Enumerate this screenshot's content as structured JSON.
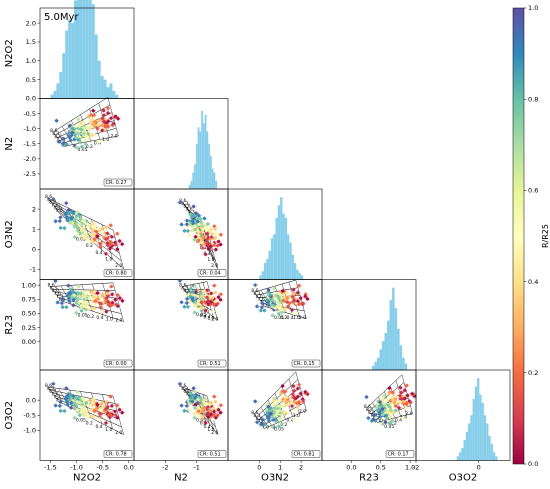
{
  "chart_data": {
    "type": "scatter",
    "time_label": "5.0Myr",
    "variables": [
      "N2O2",
      "N2",
      "O3N2",
      "R23",
      "O3O2"
    ],
    "axis_ranges": {
      "N2O2": [
        -1.7,
        0.1
      ],
      "N2": [
        -3.0,
        0.0
      ],
      "O3N2": [
        -1.5,
        3.0
      ],
      "R23": [
        -0.5,
        1.1
      ],
      "O3O2": [
        -2.0,
        1.0
      ]
    },
    "diag_ylims": {
      "N2O2": [
        0,
        2.4
      ],
      "N2": [
        0,
        1.1
      ],
      "O3N2": [
        0,
        1.1
      ],
      "R23": [
        0,
        1.1
      ],
      "O3O2": [
        0,
        1.1
      ]
    },
    "x_ticks": {
      "N2O2": [
        "-1.5",
        "-1.0",
        "-0.5",
        "0.0"
      ],
      "N2": [
        "-2",
        "-1"
      ],
      "O3N2": [
        "0",
        "1",
        "2"
      ],
      "R23": [
        "0.0",
        "0.5",
        "1.0"
      ],
      "O3O2": [
        "-2",
        "0"
      ]
    },
    "y_ticks": {
      "N2O2": [
        "0.0",
        "0.5",
        "1.0",
        "1.5",
        "2.0"
      ],
      "N2": [
        "-2.5",
        "-2.0",
        "-1.5",
        "-1.0",
        "-0.5"
      ],
      "O3N2": [
        "-1",
        "0",
        "1",
        "2"
      ],
      "R23": [
        "0.00",
        "0.25",
        "0.50",
        "0.75",
        "1.00"
      ],
      "O3O2": [
        "-1.0",
        "-0.5",
        "0.0"
      ]
    },
    "cr_values": [
      {
        "row": 1,
        "col": 0,
        "text": "CR: 0.27"
      },
      {
        "row": 2,
        "col": 0,
        "text": "CR: 0.80"
      },
      {
        "row": 2,
        "col": 1,
        "text": "CR: 0.04"
      },
      {
        "row": 3,
        "col": 0,
        "text": "CR: 0.00"
      },
      {
        "row": 3,
        "col": 1,
        "text": "CR: 0.51"
      },
      {
        "row": 3,
        "col": 2,
        "text": "CR: 0.15"
      },
      {
        "row": 4,
        "col": 0,
        "text": "CR: 0.78"
      },
      {
        "row": 4,
        "col": 1,
        "text": "CR: 0.51"
      },
      {
        "row": 4,
        "col": 2,
        "text": "CR: 0.81"
      },
      {
        "row": 4,
        "col": 3,
        "text": "CR: 0.17"
      }
    ],
    "grid_labels": [
      "8.6",
      "8.3",
      "8.0",
      "7.6",
      "7.3",
      "7.0",
      "0.05",
      "0.2",
      "0.4",
      "1.0",
      "2.0"
    ],
    "histograms": {
      "N2O2": {
        "range": [
          -1.5,
          -0.2
        ],
        "counts": [
          0.05,
          0.1,
          0.2,
          0.35,
          0.6,
          0.9,
          1.05,
          1.0,
          1.3,
          1.5,
          1.65,
          1.35,
          1.6,
          1.9,
          1.25,
          0.85,
          0.5,
          0.3,
          0.25,
          0.15,
          0.2,
          0.1,
          0.05
        ]
      },
      "N2": {
        "range": [
          -1.25,
          -0.35
        ],
        "counts": [
          0.05,
          0.1,
          0.2,
          0.3,
          0.55,
          0.75,
          0.7,
          0.95,
          0.8,
          0.9,
          0.7,
          0.55,
          0.4,
          0.25,
          0.2,
          0.1
        ]
      },
      "O3N2": {
        "range": [
          0.0,
          2.1
        ],
        "counts": [
          0.05,
          0.1,
          0.2,
          0.25,
          0.35,
          0.5,
          0.55,
          0.75,
          0.9,
          1.0,
          0.8,
          0.75,
          0.55,
          0.45,
          0.3,
          0.2,
          0.12,
          0.08,
          0.05
        ]
      },
      "R23": {
        "range": [
          0.35,
          0.95
        ],
        "counts": [
          0.05,
          0.1,
          0.15,
          0.25,
          0.35,
          0.45,
          0.6,
          0.85,
          1.0,
          0.75,
          0.5,
          0.3,
          0.15,
          0.08
        ]
      },
      "O3O2": {
        "range": [
          -0.7,
          0.6
        ],
        "counts": [
          0.05,
          0.1,
          0.15,
          0.25,
          0.35,
          0.45,
          0.55,
          0.75,
          0.9,
          1.0,
          0.8,
          0.7,
          0.55,
          0.45,
          0.3,
          0.2,
          0.1,
          0.05
        ]
      }
    },
    "scatter": {
      "n_points": 120,
      "pairs": {
        "1-0": {
          "center": [
            -0.85,
            -0.9
          ],
          "trend": [
            [
              -1.35,
              -1.35
            ],
            [
              -0.3,
              -0.6
            ]
          ]
        },
        "2-0": {
          "center": [
            -0.8,
            1.0
          ],
          "trend": [
            [
              -1.45,
              2.2
            ],
            [
              -0.2,
              0.0
            ]
          ]
        },
        "2-1": {
          "center": [
            -0.85,
            1.0
          ],
          "trend": [
            [
              -1.3,
              2.0
            ],
            [
              -0.5,
              0.0
            ]
          ]
        },
        "3-0": {
          "center": [
            -0.75,
            0.78
          ],
          "trend": [
            [
              -1.4,
              0.85
            ],
            [
              -0.2,
              0.7
            ]
          ]
        },
        "3-1": {
          "center": [
            -0.85,
            0.8
          ],
          "trend": [
            [
              -1.3,
              0.85
            ],
            [
              -0.5,
              0.72
            ]
          ]
        },
        "3-2": {
          "center": [
            1.0,
            0.78
          ],
          "trend": [
            [
              0.0,
              0.75
            ],
            [
              2.0,
              0.75
            ]
          ]
        },
        "4-0": {
          "center": [
            -0.85,
            -0.15
          ],
          "trend": [
            [
              -1.45,
              0.2
            ],
            [
              -0.2,
              -0.5
            ]
          ]
        },
        "4-1": {
          "center": [
            -0.9,
            -0.2
          ],
          "trend": [
            [
              -1.3,
              0.2
            ],
            [
              -0.5,
              -0.5
            ]
          ]
        },
        "4-2": {
          "center": [
            1.0,
            -0.15
          ],
          "trend": [
            [
              0.0,
              -0.7
            ],
            [
              2.0,
              0.3
            ]
          ]
        },
        "4-3": {
          "center": [
            0.65,
            -0.1
          ],
          "trend": [
            [
              0.35,
              -0.5
            ],
            [
              0.95,
              0.2
            ]
          ]
        }
      }
    },
    "colorbar": {
      "label": "R/R25",
      "ticks": [
        "0.0",
        "0.2",
        "0.4",
        "0.6",
        "0.8",
        "1.0"
      ],
      "range": [
        0.0,
        1.0
      ],
      "colormap": "Spectral"
    },
    "hist_color": "#87CEEB"
  }
}
